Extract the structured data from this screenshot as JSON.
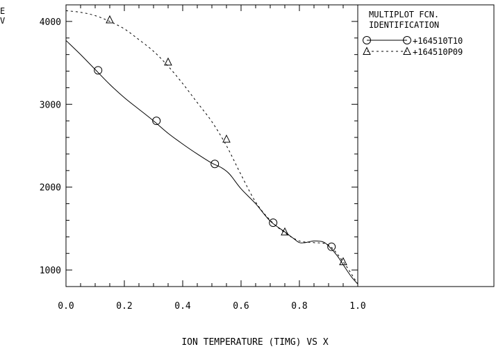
{
  "chart_data": {
    "type": "line",
    "title": "",
    "xlabel": "ION TEMPERATURE (TIMG) VS X",
    "ylabel": "E\nV",
    "xlim": [
      0.0,
      1.0
    ],
    "ylim": [
      800,
      4200
    ],
    "x_ticks": [
      "0.0",
      "0.2",
      "0.4",
      "0.6",
      "0.8",
      "1.0"
    ],
    "y_ticks": [
      "1000",
      "2000",
      "3000",
      "4000"
    ],
    "grid": false,
    "legend": {
      "placement": "right-panel",
      "header_line1": "MULTIPLOT FCN.",
      "header_line2": "IDENTIFICATION"
    },
    "series": [
      {
        "name": "+164510T10",
        "style": "solid",
        "marker": "circle",
        "x": [
          0.0,
          0.05,
          0.1,
          0.15,
          0.2,
          0.25,
          0.3,
          0.35,
          0.4,
          0.45,
          0.5,
          0.53,
          0.56,
          0.6,
          0.65,
          0.7,
          0.75,
          0.78,
          0.8,
          0.82,
          0.85,
          0.88,
          0.9,
          0.93,
          0.96,
          0.98,
          1.0
        ],
        "y": [
          3770,
          3600,
          3420,
          3240,
          3080,
          2940,
          2800,
          2650,
          2520,
          2400,
          2290,
          2240,
          2160,
          1980,
          1800,
          1590,
          1460,
          1380,
          1330,
          1330,
          1350,
          1340,
          1290,
          1170,
          1010,
          910,
          830
        ],
        "markers_x": [
          0.11,
          0.31,
          0.51,
          0.71,
          0.91
        ],
        "markers_y": [
          3410,
          2800,
          2280,
          1570,
          1280
        ]
      },
      {
        "name": "+164510P09",
        "style": "dashed",
        "marker": "triangle",
        "x": [
          0.0,
          0.05,
          0.1,
          0.15,
          0.2,
          0.25,
          0.3,
          0.35,
          0.4,
          0.45,
          0.5,
          0.55,
          0.6,
          0.65,
          0.7,
          0.75,
          0.8,
          0.85,
          0.9,
          0.95,
          1.0
        ],
        "y": [
          4130,
          4110,
          4070,
          4000,
          3910,
          3780,
          3640,
          3460,
          3250,
          3020,
          2790,
          2500,
          2150,
          1820,
          1600,
          1450,
          1350,
          1330,
          1300,
          1100,
          830
        ],
        "markers_x": [
          0.15,
          0.35,
          0.55,
          0.75,
          0.95
        ],
        "markers_y": [
          4020,
          3510,
          2580,
          1460,
          1100
        ]
      }
    ]
  }
}
